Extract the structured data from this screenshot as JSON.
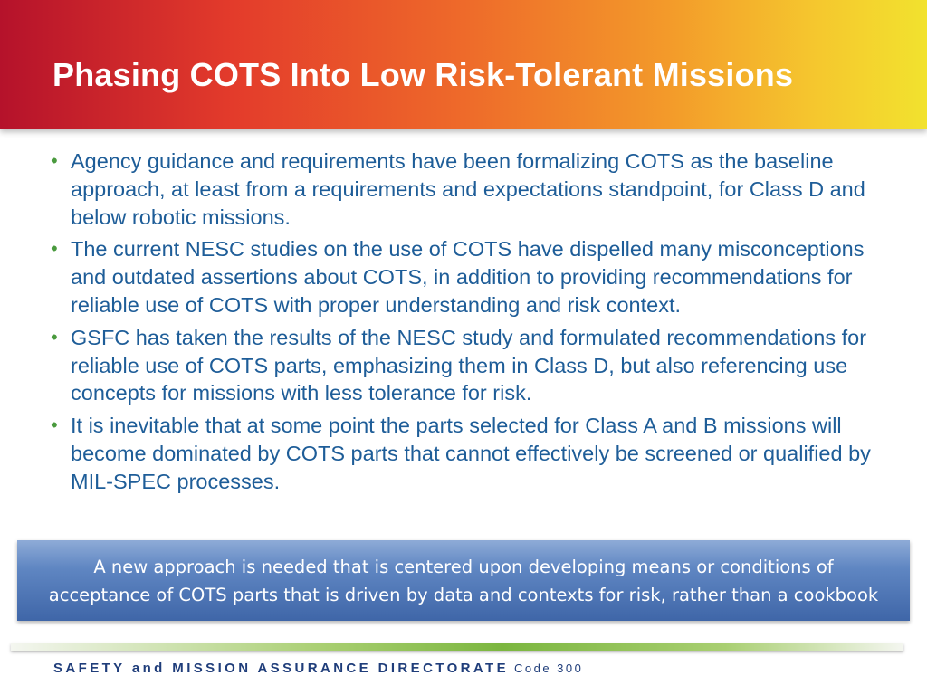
{
  "title": "Phasing COTS Into Low Risk-Tolerant Missions",
  "bullets": [
    "Agency guidance and requirements have been formalizing COTS as the baseline approach, at least from a requirements and expectations standpoint, for Class D and below robotic missions.",
    "The current NESC studies on the use of COTS have dispelled many misconceptions and outdated assertions about COTS, in addition to providing recommendations for reliable use of COTS with proper understanding and risk context.",
    "GSFC has taken the results of the NESC study and formulated recommendations for reliable use of COTS parts, emphasizing them in Class D, but also referencing use concepts for missions with less tolerance for risk.",
    "It is inevitable that at some point the parts selected for Class A and B missions will become dominated by COTS parts that cannot effectively be screened or qualified by MIL-SPEC processes."
  ],
  "bullet_symbol": "•",
  "callout": {
    "line1": "A new approach is needed that is centered upon developing means or conditions of",
    "line2": "acceptance of COTS parts that is driven by data and contexts for risk, rather than a cookbook"
  },
  "footer": {
    "directorate": "SAFETY and MISSION ASSURANCE DIRECTORATE",
    "code": "Code 300"
  },
  "colors": {
    "bullet_text": "#1e5d98",
    "bullet_marker": "#4a9a3e",
    "footer_text": "#1f3d7a"
  }
}
